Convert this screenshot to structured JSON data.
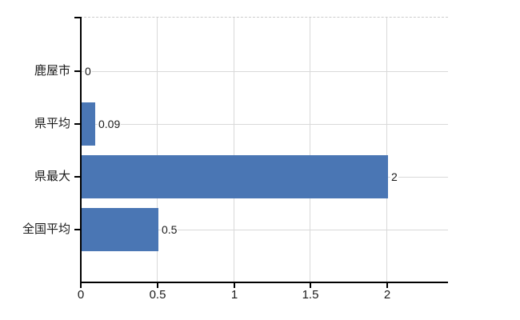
{
  "chart_data": {
    "type": "bar",
    "orientation": "horizontal",
    "title": "",
    "categories": [
      "鹿屋市",
      "県平均",
      "県最大",
      "全国平均"
    ],
    "values": [
      0,
      0.09,
      2,
      0.5
    ],
    "value_labels": [
      "0",
      "0.09",
      "2",
      "0.5"
    ],
    "x_ticks": [
      0,
      0.5,
      1,
      1.5,
      2
    ],
    "x_tick_labels": [
      "0",
      "0.5",
      "1",
      "1.5",
      "2"
    ],
    "xlim": [
      0,
      2.4
    ],
    "grid": true,
    "legend": false,
    "colors": {
      "bar": "#4a76b4",
      "axis": "#000000",
      "grid": "#d9d9d9",
      "top_border": "#cccccc",
      "text": "#1a1a1a",
      "background": "#ffffff"
    }
  }
}
